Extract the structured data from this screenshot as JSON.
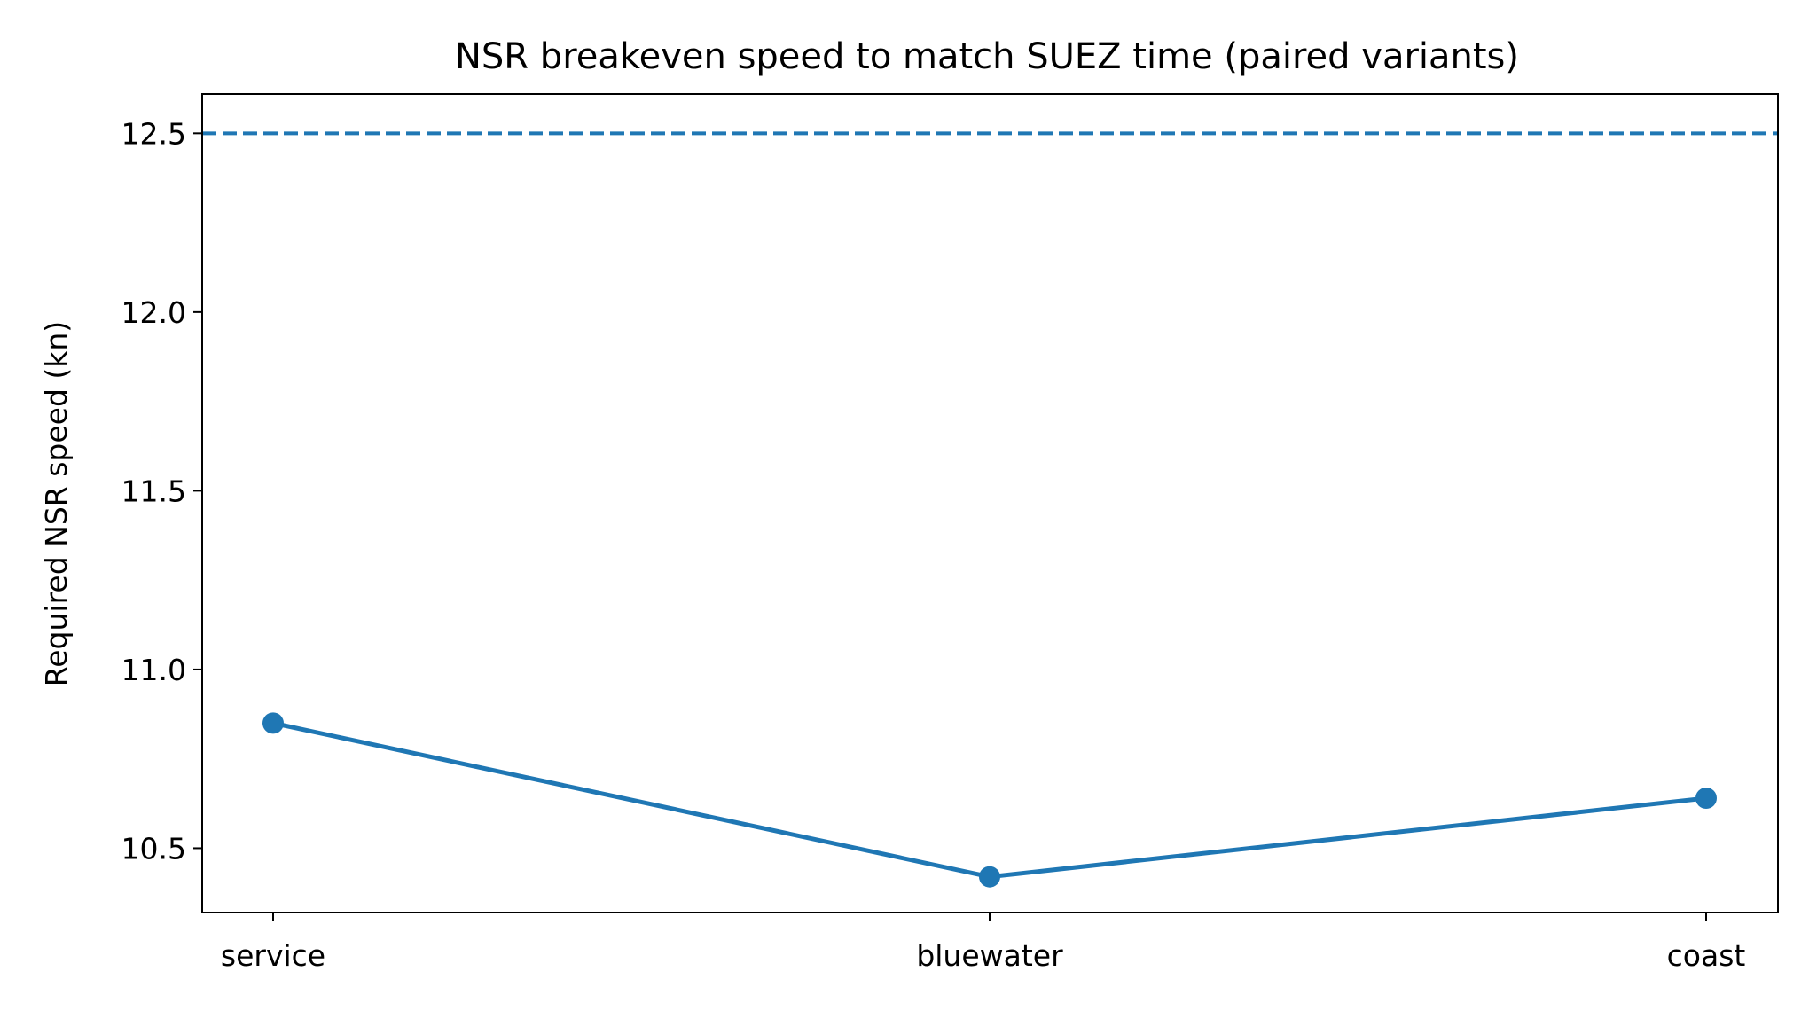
{
  "chart_data": {
    "type": "line",
    "title": "NSR breakeven speed to match SUEZ time (paired variants)",
    "xlabel": "",
    "ylabel": "Required NSR speed (kn)",
    "categories": [
      "service",
      "bluewater",
      "coast"
    ],
    "series": [
      {
        "values": [
          10.85,
          10.42,
          10.64
        ],
        "color": "#1f77b4",
        "marker": "circle"
      }
    ],
    "reference_line": {
      "y": 12.5,
      "style": "dashed",
      "color": "#1f77b4"
    },
    "ylim": [
      10.32,
      12.61
    ],
    "yticks": [
      10.5,
      11.0,
      11.5,
      12.0,
      12.5
    ],
    "ytick_labels": [
      "10.5",
      "11.0",
      "11.5",
      "12.0",
      "12.5"
    ],
    "grid": false,
    "legend": "none"
  }
}
